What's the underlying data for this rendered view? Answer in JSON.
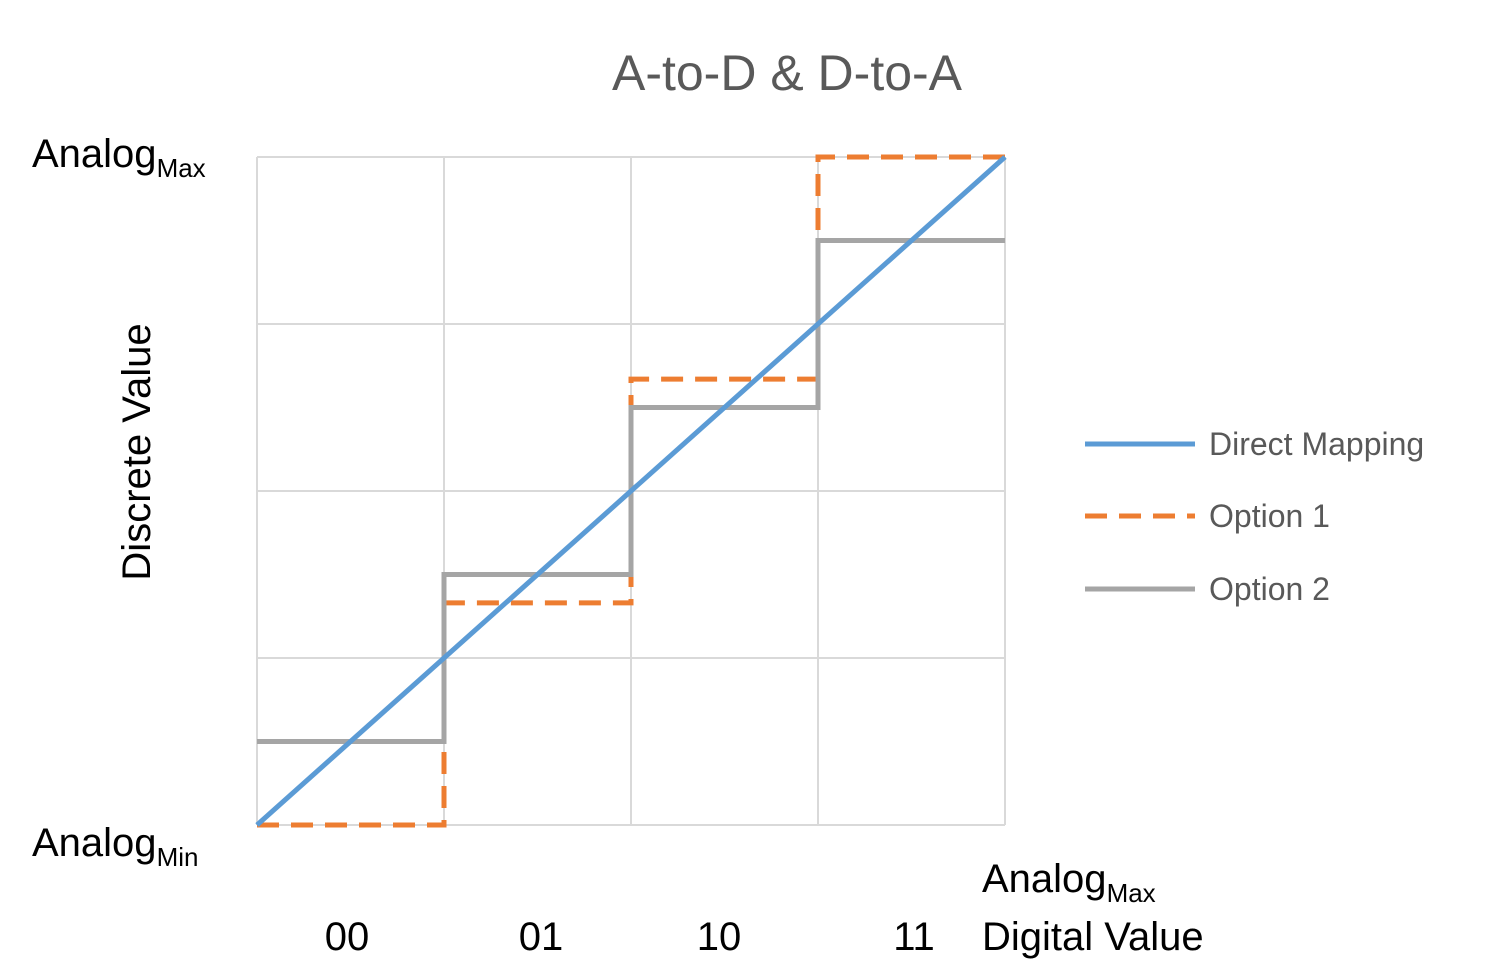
{
  "chart_data": {
    "type": "line",
    "title": "A-to-D & D-to-A",
    "ylabel": "Discrete Value",
    "xlabel": "Digital Value",
    "x_axis_end_label": {
      "base": "Analog",
      "sub": "Max"
    },
    "y_axis_top_label": {
      "base": "Analog",
      "sub": "Max"
    },
    "y_axis_bottom_label": {
      "base": "Analog",
      "sub": "Min"
    },
    "categories": [
      "00",
      "01",
      "10",
      "11"
    ],
    "xlim": [
      0,
      4
    ],
    "ylim": [
      0,
      4
    ],
    "grid": true,
    "legend_position": "right",
    "series": [
      {
        "name": "Direct Mapping",
        "color": "#5B9BD5",
        "dash": "solid",
        "points": [
          [
            0,
            0
          ],
          [
            4,
            4
          ]
        ]
      },
      {
        "name": "Option 1",
        "color": "#ED7D31",
        "dash": "dashed",
        "points": [
          [
            0,
            0
          ],
          [
            1,
            0
          ],
          [
            1,
            1.33
          ],
          [
            2,
            1.33
          ],
          [
            2,
            2.67
          ],
          [
            3,
            2.67
          ],
          [
            3,
            4
          ],
          [
            4,
            4
          ]
        ]
      },
      {
        "name": "Option 2",
        "color": "#A5A5A5",
        "dash": "solid",
        "points": [
          [
            0,
            0.5
          ],
          [
            1,
            0.5
          ],
          [
            1,
            1.5
          ],
          [
            2,
            1.5
          ],
          [
            2,
            2.5
          ],
          [
            3,
            2.5
          ],
          [
            3,
            3.5
          ],
          [
            4,
            3.5
          ]
        ]
      }
    ]
  }
}
